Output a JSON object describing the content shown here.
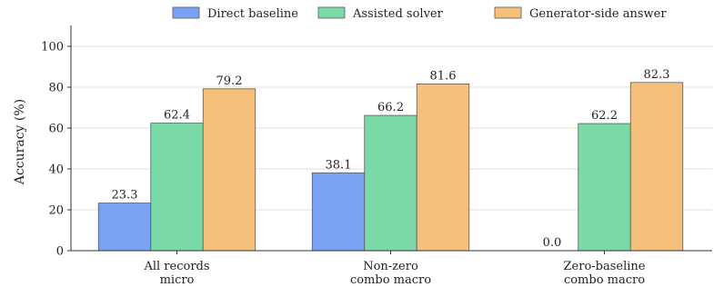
{
  "chart_data": {
    "type": "bar",
    "title": "",
    "xlabel": "",
    "ylabel": "Accuracy (%)",
    "ylim": [
      0,
      100
    ],
    "yticks": [
      0,
      20,
      40,
      60,
      80,
      100
    ],
    "grid": "horizontal",
    "legend_position": "top",
    "categories": [
      [
        "All records",
        "micro"
      ],
      [
        "Non-zero",
        "combo macro"
      ],
      [
        "Zero-baseline",
        "combo macro"
      ]
    ],
    "series": [
      {
        "name": "Direct baseline",
        "color": "#7ba3f5",
        "values": [
          23.3,
          38.1,
          0.0
        ],
        "labels": [
          "23.3",
          "38.1",
          "0.0"
        ]
      },
      {
        "name": "Assisted solver",
        "color": "#7ad9a6",
        "values": [
          62.4,
          66.2,
          62.2
        ],
        "labels": [
          "62.4",
          "66.2",
          "62.2"
        ]
      },
      {
        "name": "Generator-side answer",
        "color": "#f5c07c",
        "values": [
          79.2,
          81.6,
          82.3
        ],
        "labels": [
          "79.2",
          "81.6",
          "82.3"
        ]
      }
    ]
  }
}
